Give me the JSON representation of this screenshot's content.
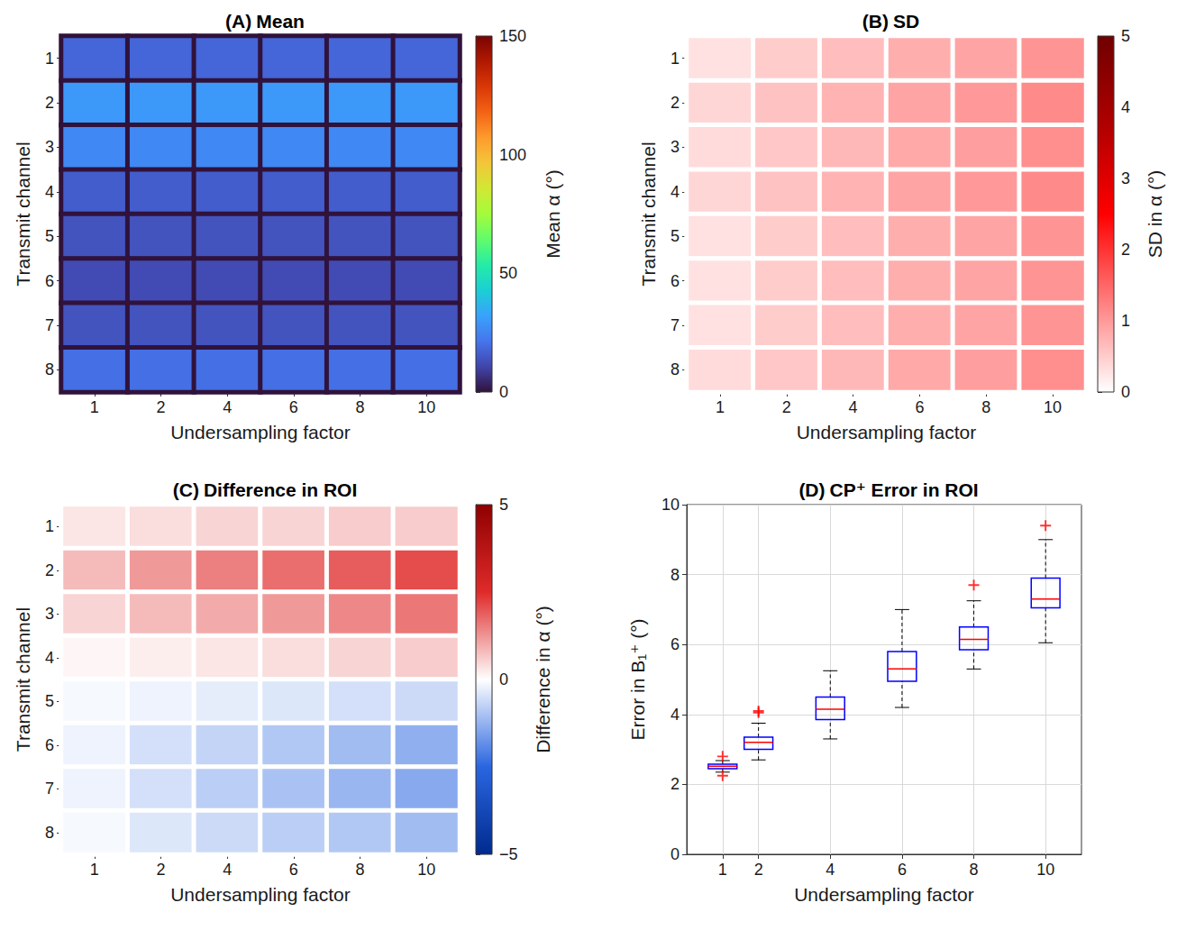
{
  "chart_data": [
    {
      "type": "heatmap",
      "label": "(A)",
      "title": "Mean",
      "x": [
        1,
        2,
        4,
        6,
        8,
        10
      ],
      "y": [
        1,
        2,
        3,
        4,
        5,
        6,
        7,
        8
      ],
      "xlabel": "Undersampling factor",
      "ylabel": "Transmit channel",
      "cells": [
        [
          18,
          18,
          18,
          18,
          18,
          18
        ],
        [
          30,
          30,
          30,
          30,
          30,
          30
        ],
        [
          26,
          26,
          26,
          26,
          26,
          26
        ],
        [
          16,
          16,
          16,
          16,
          16,
          16
        ],
        [
          14,
          14,
          14,
          14,
          14,
          14
        ],
        [
          12,
          12,
          12,
          12,
          12,
          12
        ],
        [
          14,
          14,
          14,
          14,
          14,
          14
        ],
        [
          20,
          20,
          20,
          20,
          20,
          20
        ]
      ],
      "colorbar": {
        "label": "Mean α (°)",
        "range": [
          0,
          150
        ],
        "ticks": [
          0,
          50,
          100,
          150
        ]
      }
    },
    {
      "type": "heatmap",
      "label": "(B)",
      "title": "SD",
      "x": [
        1,
        2,
        4,
        6,
        8,
        10
      ],
      "y": [
        1,
        2,
        3,
        4,
        5,
        6,
        7,
        8
      ],
      "xlabel": "Undersampling factor",
      "ylabel": "Transmit channel",
      "cells": [
        [
          0.3,
          0.5,
          0.65,
          0.8,
          0.9,
          1.05
        ],
        [
          0.4,
          0.6,
          0.75,
          0.9,
          1.0,
          1.15
        ],
        [
          0.35,
          0.55,
          0.7,
          0.85,
          0.95,
          1.1
        ],
        [
          0.4,
          0.6,
          0.75,
          0.9,
          1.0,
          1.15
        ],
        [
          0.3,
          0.5,
          0.65,
          0.8,
          0.9,
          1.05
        ],
        [
          0.3,
          0.5,
          0.65,
          0.8,
          0.9,
          1.05
        ],
        [
          0.3,
          0.5,
          0.65,
          0.8,
          0.9,
          1.05
        ],
        [
          0.35,
          0.55,
          0.7,
          0.85,
          0.95,
          1.1
        ]
      ],
      "colorbar": {
        "label": "SD in α (°)",
        "range": [
          0,
          5
        ],
        "ticks": [
          0,
          1,
          2,
          3,
          4,
          5
        ]
      }
    },
    {
      "type": "heatmap",
      "label": "(C)",
      "title": "Difference in ROI",
      "x": [
        1,
        2,
        4,
        6,
        8,
        10
      ],
      "y": [
        1,
        2,
        3,
        4,
        5,
        6,
        7,
        8
      ],
      "xlabel": "Undersampling factor",
      "ylabel": "Transmit channel",
      "cells": [
        [
          0.3,
          0.4,
          0.5,
          0.5,
          0.6,
          0.6
        ],
        [
          0.8,
          1.2,
          1.5,
          1.7,
          1.9,
          2.1
        ],
        [
          0.5,
          0.8,
          1.0,
          1.2,
          1.4,
          1.6
        ],
        [
          0.1,
          0.2,
          0.3,
          0.4,
          0.5,
          0.6
        ],
        [
          -0.1,
          -0.2,
          -0.3,
          -0.4,
          -0.5,
          -0.6
        ],
        [
          -0.2,
          -0.5,
          -0.7,
          -0.9,
          -1.1,
          -1.3
        ],
        [
          -0.2,
          -0.5,
          -0.8,
          -1.0,
          -1.2,
          -1.4
        ],
        [
          -0.1,
          -0.4,
          -0.6,
          -0.8,
          -0.9,
          -1.1
        ]
      ],
      "colorbar": {
        "label": "Difference in α (°)",
        "range": [
          -5,
          5
        ],
        "ticks": [
          {
            "value": -5,
            "label": "−5"
          },
          0,
          5
        ]
      }
    },
    {
      "type": "boxplot",
      "label": "(D)",
      "title": "CP⁺ Error in ROI",
      "xlabel": "Undersampling factor",
      "ylabel": "Error in B₁⁺ (°)",
      "x": [
        1,
        2,
        4,
        6,
        8,
        10
      ],
      "boxes": [
        [
          2.35,
          2.45,
          2.52,
          2.58,
          2.68
        ],
        [
          2.7,
          3.0,
          3.2,
          3.35,
          3.75
        ],
        [
          3.3,
          3.85,
          4.15,
          4.5,
          5.25
        ],
        [
          4.2,
          4.95,
          5.3,
          5.8,
          7.0
        ],
        [
          5.3,
          5.85,
          6.15,
          6.5,
          7.25
        ],
        [
          6.05,
          7.05,
          7.3,
          7.9,
          9.0
        ]
      ],
      "outliers": [
        [
          2.8,
          2.25
        ],
        [
          4.05,
          4.1
        ],
        [],
        [],
        [
          7.7
        ],
        [
          9.4
        ]
      ],
      "xlim": [
        0,
        11
      ],
      "xticks": [
        1,
        2,
        4,
        6,
        8,
        10
      ],
      "ylim": [
        0,
        10
      ],
      "yticks": [
        0,
        2,
        4,
        6,
        8,
        10
      ],
      "grid": true
    }
  ]
}
